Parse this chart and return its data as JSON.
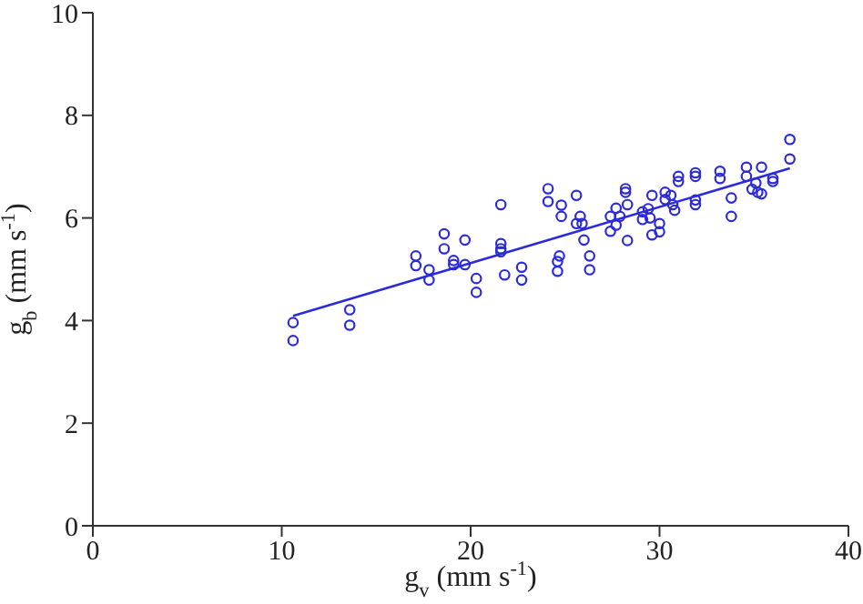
{
  "chart_data": {
    "type": "scatter",
    "xlabel": "g$_{v}$ (mm s$^{-1}$)",
    "ylabel": "g$_{b}$ (mm s$^{-1}$)",
    "xlim": [
      0,
      40
    ],
    "xticks": [
      0,
      10,
      20,
      30,
      40
    ],
    "ylim": [
      0,
      10
    ],
    "yticks": [
      0,
      2,
      4,
      6,
      8,
      10
    ],
    "series": [
      {
        "marker": "circle",
        "color": "#2b2bd9",
        "x": [
          10.6,
          10.6,
          13.6,
          13.6,
          17.1,
          17.1,
          17.8,
          17.8,
          18.6,
          18.6,
          19.1,
          19.1,
          19.7,
          19.7,
          20.3,
          20.3,
          21.6,
          21.6,
          21.6,
          21.6,
          21.8,
          22.7,
          22.7,
          24.1,
          24.1,
          24.6,
          24.6,
          24.7,
          24.8,
          24.8,
          25.6,
          25.6,
          25.8,
          25.9,
          26.0,
          26.3,
          26.3,
          27.4,
          27.4,
          27.7,
          27.7,
          27.9,
          28.2,
          28.2,
          28.3,
          28.3,
          29.1,
          29.1,
          29.4,
          29.5,
          29.6,
          29.6,
          30.0,
          30.0,
          30.3,
          30.3,
          30.6,
          30.7,
          30.8,
          31.0,
          31.0,
          31.9,
          31.9,
          31.9,
          31.9,
          33.2,
          33.2,
          33.8,
          33.8,
          34.6,
          34.6,
          34.9,
          35.1,
          35.2,
          35.4,
          35.4,
          36.0,
          36.0,
          36.9,
          36.9
        ],
        "values": [
          3.96,
          3.61,
          4.21,
          3.91,
          5.26,
          5.07,
          4.99,
          4.79,
          5.69,
          5.4,
          5.17,
          5.09,
          5.57,
          5.09,
          4.82,
          4.55,
          6.26,
          5.5,
          5.4,
          5.34,
          4.89,
          5.04,
          4.79,
          6.57,
          6.32,
          5.15,
          4.96,
          5.26,
          6.25,
          6.03,
          6.44,
          5.89,
          6.03,
          5.89,
          5.57,
          5.26,
          4.99,
          5.74,
          6.03,
          6.19,
          5.86,
          6.03,
          6.57,
          6.5,
          6.26,
          5.56,
          6.12,
          5.97,
          6.18,
          6.0,
          5.67,
          6.44,
          5.89,
          5.73,
          6.5,
          6.36,
          6.44,
          6.26,
          6.15,
          6.81,
          6.71,
          6.88,
          6.81,
          6.35,
          6.26,
          6.91,
          6.77,
          6.39,
          6.03,
          6.99,
          6.81,
          6.56,
          6.68,
          6.5,
          6.99,
          6.47,
          6.77,
          6.71,
          7.53,
          7.15
        ]
      },
      {
        "type": "line",
        "marker": "none",
        "color": "#2b2bd9",
        "x": [
          10.6,
          36.9
        ],
        "values": [
          4.09,
          6.97
        ]
      }
    ]
  }
}
